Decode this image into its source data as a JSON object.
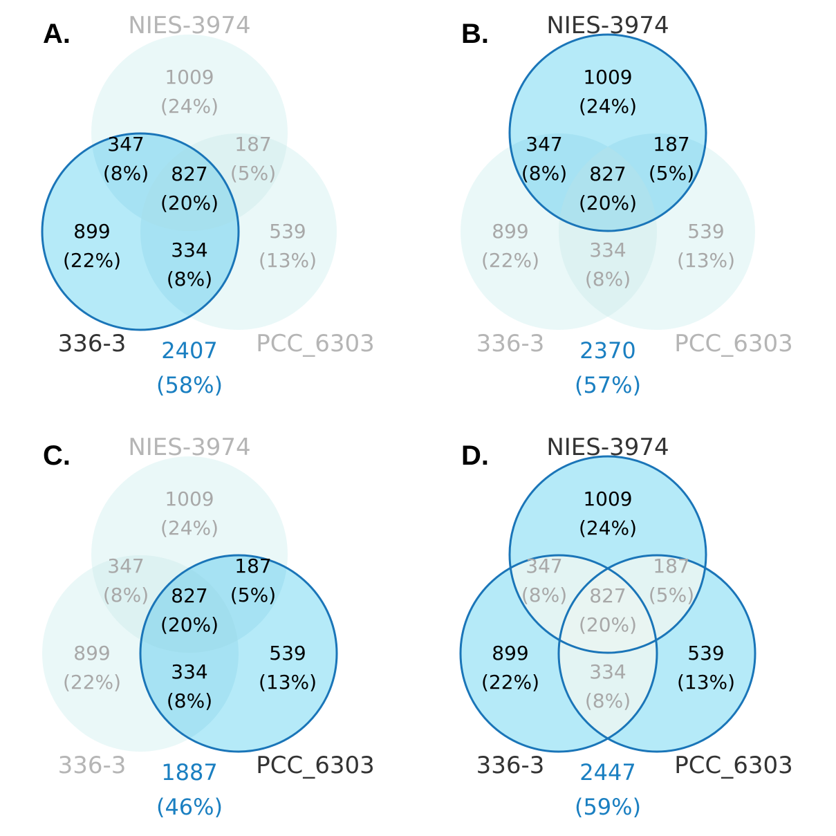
{
  "colors": {
    "highlight_fill": "#a8e6f7",
    "highlight_stroke": "#1a75b8",
    "faded_fill": "#e3f5f6",
    "active_text": "#000000",
    "faded_text": "#a8a8a8",
    "total_text": "#1a7fc1",
    "label_active": "#333333",
    "label_faded": "#b5b5b5"
  },
  "sets": {
    "nies": "NIES-3974",
    "s336": "336-3",
    "pcc": "PCC_6303"
  },
  "regions": {
    "nies_only": {
      "count": "1009",
      "pct": "(24%)"
    },
    "nies_336": {
      "count": "347",
      "pct": "(8%)"
    },
    "nies_pcc": {
      "count": "187",
      "pct": "(5%)"
    },
    "all_three": {
      "count": "827",
      "pct": "(20%)"
    },
    "s336_only": {
      "count": "899",
      "pct": "(22%)"
    },
    "s336_pcc": {
      "count": "334",
      "pct": "(8%)"
    },
    "pcc_only": {
      "count": "539",
      "pct": "(13%)"
    }
  },
  "panels": [
    {
      "letter": "A.",
      "highlight": [
        "s336"
      ],
      "total": {
        "count": "2407",
        "pct": "(58%)"
      },
      "active_regions": [
        "nies_336",
        "all_three",
        "s336_only",
        "s336_pcc"
      ]
    },
    {
      "letter": "B.",
      "highlight": [
        "nies"
      ],
      "total": {
        "count": "2370",
        "pct": "(57%)"
      },
      "active_regions": [
        "nies_only",
        "nies_336",
        "nies_pcc",
        "all_three"
      ]
    },
    {
      "letter": "C.",
      "highlight": [
        "pcc"
      ],
      "total": {
        "count": "1887",
        "pct": "(46%)"
      },
      "active_regions": [
        "nies_pcc",
        "all_three",
        "s336_pcc",
        "pcc_only"
      ]
    },
    {
      "letter": "D.",
      "highlight": [
        "nies",
        "s336",
        "pcc"
      ],
      "total": {
        "count": "2447",
        "pct": "(59%)"
      },
      "active_regions": [
        "nies_only",
        "s336_only",
        "pcc_only"
      ]
    }
  ]
}
